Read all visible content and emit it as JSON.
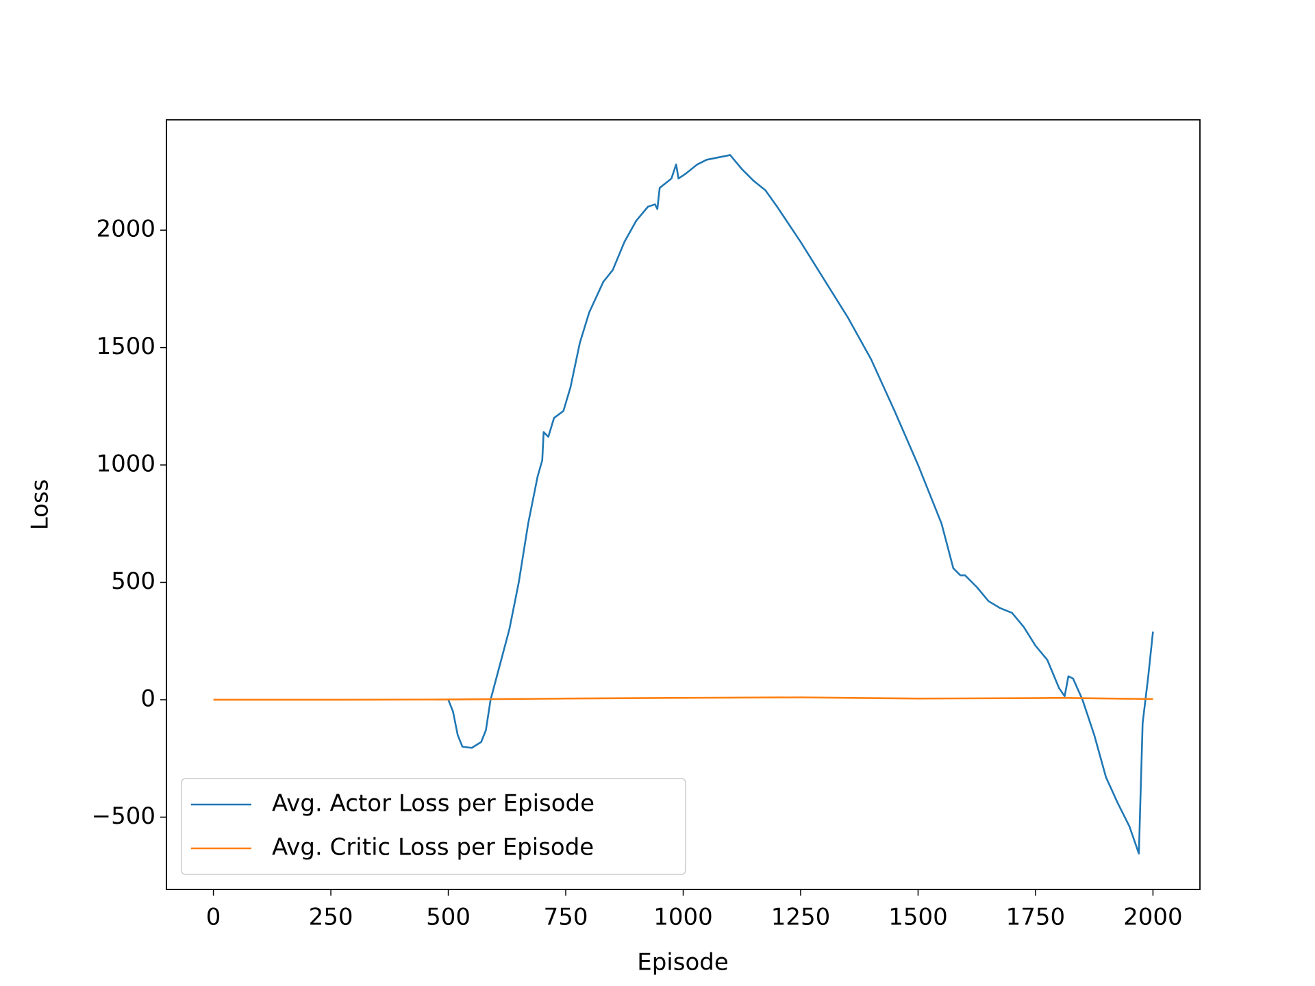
{
  "chart_data": {
    "type": "line",
    "x_label": "Episode",
    "y_label": "Loss",
    "xlim": [
      -100,
      2100
    ],
    "ylim": [
      -808,
      2470
    ],
    "xticks": [
      0,
      250,
      500,
      750,
      1000,
      1250,
      1500,
      1750,
      2000
    ],
    "yticks": [
      {
        "value": -500,
        "label": "−500"
      },
      0,
      500,
      1000,
      1500,
      2000
    ],
    "legend": "lower left",
    "series": [
      {
        "name": "Avg. Actor Loss per Episode",
        "color": "#1f77b4",
        "x": [
          500,
          510,
          520,
          530,
          550,
          570,
          580,
          590,
          610,
          630,
          650,
          670,
          690,
          700,
          703,
          713,
          725,
          745,
          760,
          780,
          800,
          830,
          850,
          875,
          900,
          925,
          940,
          945,
          950,
          975,
          985,
          990,
          1005,
          1030,
          1050,
          1100,
          1125,
          1150,
          1175,
          1200,
          1250,
          1300,
          1350,
          1400,
          1450,
          1500,
          1550,
          1575,
          1590,
          1600,
          1625,
          1650,
          1675,
          1700,
          1725,
          1750,
          1775,
          1800,
          1812,
          1820,
          1830,
          1850,
          1875,
          1900,
          1925,
          1950,
          1970,
          1978,
          1990,
          2000
        ],
        "values": [
          0,
          -50,
          -150,
          -200,
          -205,
          -180,
          -130,
          0,
          150,
          300,
          500,
          750,
          950,
          1020,
          1140,
          1120,
          1200,
          1230,
          1330,
          1520,
          1650,
          1780,
          1830,
          1950,
          2040,
          2100,
          2110,
          2090,
          2180,
          2220,
          2280,
          2220,
          2240,
          2280,
          2300,
          2320,
          2260,
          2210,
          2170,
          2100,
          1950,
          1790,
          1630,
          1450,
          1230,
          1000,
          750,
          560,
          530,
          530,
          480,
          420,
          390,
          370,
          310,
          230,
          170,
          50,
          15,
          100,
          90,
          0,
          -150,
          -330,
          -440,
          -540,
          -655,
          -100,
          100,
          290
        ]
      },
      {
        "name": "Avg. Critic Loss per Episode",
        "color": "#ff7f0e",
        "x": [
          0,
          250,
          500,
          750,
          1000,
          1250,
          1500,
          1750,
          1800,
          2000
        ],
        "values": [
          0,
          0,
          1,
          5,
          8,
          10,
          5,
          7,
          8,
          3
        ]
      }
    ]
  }
}
